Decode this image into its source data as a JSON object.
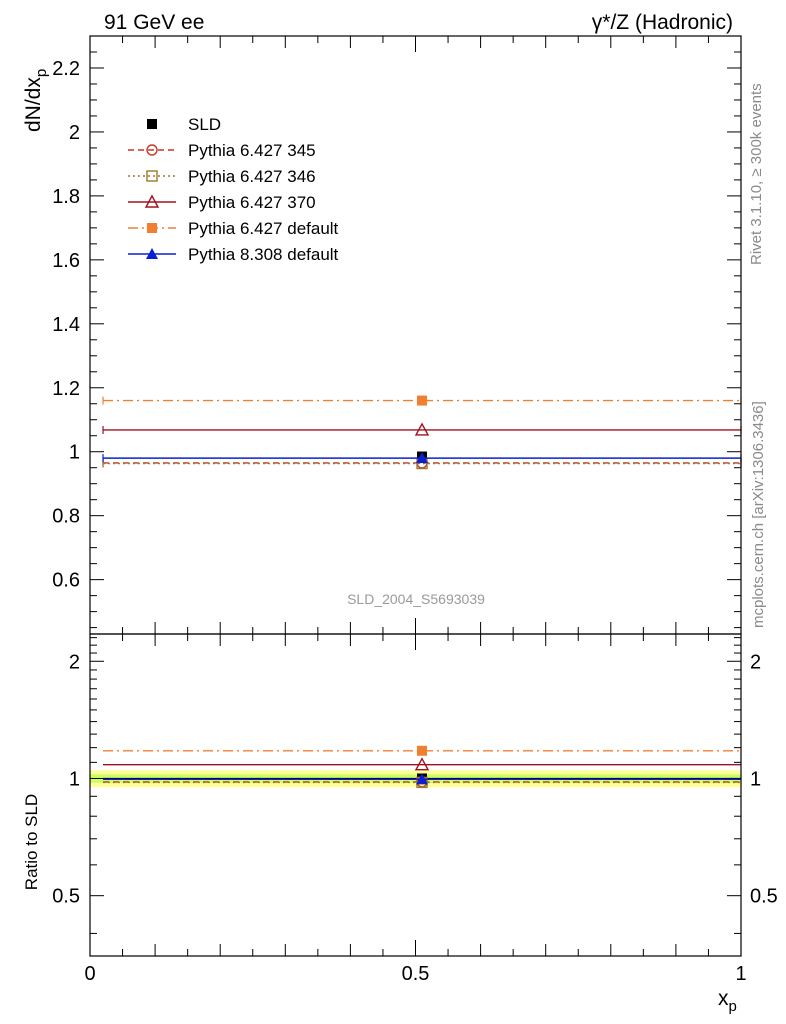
{
  "header": {
    "left_title": "91 GeV ee",
    "right_title": "γ*/Z (Hadronic)"
  },
  "side_labels": {
    "rivet": "Rivet 3.1.10, ≥ 300k events",
    "mcplots": "mcplots.cern.ch [arXiv:1306.3436]"
  },
  "colors": {
    "sld": "#000000",
    "p345": "#c0392b",
    "p346": "#a0782a",
    "p370": "#a01020",
    "p6def": "#f08030",
    "p8def": "#0a20d0",
    "band_inner": "#ccff66",
    "band_outer": "#ffff99"
  },
  "chart_data": [
    {
      "type": "line",
      "panel": "main",
      "watermark": "SLD_2004_S5693039",
      "ylabel": "dN/dx",
      "ylabel_sub": "p",
      "xlim": [
        0,
        1
      ],
      "ylim": [
        0.43,
        2.3
      ],
      "yticks": [
        0.6,
        0.8,
        1.0,
        1.2,
        1.4,
        1.6,
        1.8,
        2.0,
        2.2
      ],
      "ytick_labels": [
        "0.6",
        "0.8",
        "1",
        "1.2",
        "1.4",
        "1.6",
        "1.8",
        "2",
        "2.2"
      ],
      "bin": [
        0.02,
        1.0
      ],
      "series": [
        {
          "key": "sld",
          "name": "SLD",
          "x": 0.51,
          "value": 0.985,
          "marker": "square-filled",
          "line": "none"
        },
        {
          "key": "p345",
          "name": "Pythia 6.427 345",
          "x": 0.51,
          "value": 0.965,
          "marker": "circle-open",
          "line": "dashed"
        },
        {
          "key": "p346",
          "name": "Pythia 6.427 346",
          "x": 0.51,
          "value": 0.963,
          "marker": "square-open",
          "line": "dotted"
        },
        {
          "key": "p370",
          "name": "Pythia 6.427 370",
          "x": 0.51,
          "value": 1.068,
          "marker": "triangle-open",
          "line": "solid"
        },
        {
          "key": "p6def",
          "name": "Pythia 6.427 default",
          "x": 0.51,
          "value": 1.16,
          "marker": "square-filled",
          "line": "dashdot"
        },
        {
          "key": "p8def",
          "name": "Pythia 8.308 default",
          "x": 0.51,
          "value": 0.98,
          "marker": "triangle-filled",
          "line": "solid"
        }
      ]
    },
    {
      "type": "line",
      "panel": "ratio",
      "ylabel": "Ratio to SLD",
      "xlabel": "x",
      "xlabel_sub": "p",
      "xlim": [
        0,
        1
      ],
      "ylim": [
        0.35,
        2.35
      ],
      "scale": "log",
      "yticks": [
        0.5,
        1,
        2
      ],
      "ytick_labels": [
        "0.5",
        "1",
        "2"
      ],
      "xticks": [
        0,
        0.5,
        1
      ],
      "xtick_labels": [
        "0",
        "0.5",
        "1"
      ],
      "band_inner": [
        0.975,
        1.025
      ],
      "band_outer": [
        0.95,
        1.05
      ],
      "series": [
        {
          "key": "sld",
          "value": 1.0
        },
        {
          "key": "p345",
          "value": 0.98
        },
        {
          "key": "p346",
          "value": 0.977
        },
        {
          "key": "p370",
          "value": 1.085
        },
        {
          "key": "p6def",
          "value": 1.178
        },
        {
          "key": "p8def",
          "value": 0.995
        }
      ]
    }
  ]
}
